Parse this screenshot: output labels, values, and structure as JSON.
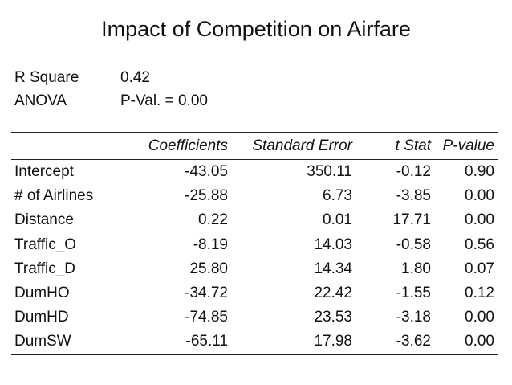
{
  "title": "Impact of Competition on Airfare",
  "summary": {
    "r_square_label": "R Square",
    "r_square_value": "0.42",
    "anova_label": "ANOVA",
    "anova_value": "P-Val. = 0.00"
  },
  "table": {
    "headers": [
      "",
      "Coefficients",
      "Standard Error",
      "t Stat",
      "P-value"
    ],
    "rows": [
      [
        "Intercept",
        "-43.05",
        "350.11",
        "-0.12",
        "0.90"
      ],
      [
        "# of Airlines",
        "-25.88",
        "6.73",
        "-3.85",
        "0.00"
      ],
      [
        "Distance",
        "0.22",
        "0.01",
        "17.71",
        "0.00"
      ],
      [
        "Traffic_O",
        "-8.19",
        "14.03",
        "-0.58",
        "0.56"
      ],
      [
        "Traffic_D",
        "25.80",
        "14.34",
        "1.80",
        "0.07"
      ],
      [
        "DumHO",
        "-34.72",
        "22.42",
        "-1.55",
        "0.12"
      ],
      [
        "DumHD",
        "-74.85",
        "23.53",
        "-3.18",
        "0.00"
      ],
      [
        "DumSW",
        "-65.11",
        "17.98",
        "-3.62",
        "0.00"
      ]
    ]
  }
}
